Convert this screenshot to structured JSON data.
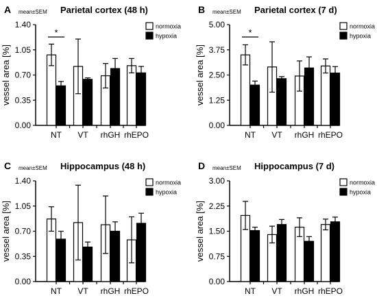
{
  "legend": {
    "normoxia_label": "normoxia",
    "hypoxia_label": "hypoxia",
    "normoxia_color": "#ffffff",
    "hypoxia_color": "#000000"
  },
  "chart_data": [
    {
      "type": "bar",
      "panel": "A",
      "stat_note": "mean±SEM",
      "title": "Parietal cortex (48 h)",
      "ylabel": "vessel area [%]",
      "ylim": [
        0,
        1.4
      ],
      "yticks": [
        "0.00",
        "0.35",
        "0.70",
        "1.05",
        "1.40"
      ],
      "categories": [
        "NT",
        "VT",
        "rhGH",
        "rhEPO"
      ],
      "series": [
        {
          "name": "normoxia",
          "values": [
            0.98,
            0.82,
            0.69,
            0.83
          ],
          "errors": [
            0.15,
            0.38,
            0.17,
            0.1
          ]
        },
        {
          "name": "hypoxia",
          "values": [
            0.55,
            0.64,
            0.79,
            0.73
          ],
          "errors": [
            0.06,
            0.02,
            0.14,
            0.09
          ]
        }
      ],
      "significance": [
        {
          "category": "NT",
          "label": "*"
        }
      ]
    },
    {
      "type": "bar",
      "panel": "B",
      "stat_note": "mean±SEM",
      "title": "Parietal cortex (7 d)",
      "ylabel": "vessel area [%]",
      "ylim": [
        0,
        5.0
      ],
      "yticks": [
        "0.00",
        "1.25",
        "2.50",
        "3.75",
        "5.00"
      ],
      "categories": [
        "NT",
        "VT",
        "rhGH",
        "rhEPO"
      ],
      "series": [
        {
          "name": "normoxia",
          "values": [
            3.5,
            2.9,
            2.45,
            2.95
          ],
          "errors": [
            0.5,
            1.25,
            0.75,
            0.35
          ]
        },
        {
          "name": "hypoxia",
          "values": [
            2.0,
            2.32,
            2.85,
            2.6
          ],
          "errors": [
            0.2,
            0.1,
            0.55,
            0.32
          ]
        }
      ],
      "significance": [
        {
          "category": "NT",
          "label": "*"
        }
      ]
    },
    {
      "type": "bar",
      "panel": "C",
      "stat_note": "mean±SEM",
      "title": "Hippocampus (48 h)",
      "ylabel": "vessel area [%]",
      "ylim": [
        0,
        1.4
      ],
      "yticks": [
        "0.00",
        "0.35",
        "0.70",
        "1.05",
        "1.40"
      ],
      "categories": [
        "NT",
        "VT",
        "rhGH",
        "rhEPO"
      ],
      "series": [
        {
          "name": "normoxia",
          "values": [
            0.87,
            0.82,
            0.79,
            0.58
          ],
          "errors": [
            0.17,
            0.52,
            0.4,
            0.32
          ]
        },
        {
          "name": "hypoxia",
          "values": [
            0.59,
            0.48,
            0.7,
            0.81
          ],
          "errors": [
            0.11,
            0.07,
            0.13,
            0.14
          ]
        }
      ],
      "significance": []
    },
    {
      "type": "bar",
      "panel": "D",
      "stat_note": "mean±SEM",
      "title": "Hippocampus (7 d)",
      "ylabel": "vessel area [%]",
      "ylim": [
        0,
        3.0
      ],
      "yticks": [
        "0.00",
        "0.75",
        "1.50",
        "2.25",
        "3.00"
      ],
      "categories": [
        "NT",
        "VT",
        "rhGH",
        "rhEPO"
      ],
      "series": [
        {
          "name": "normoxia",
          "values": [
            1.97,
            1.4,
            1.62,
            1.7
          ],
          "errors": [
            0.42,
            0.25,
            0.28,
            0.16
          ]
        },
        {
          "name": "hypoxia",
          "values": [
            1.52,
            1.7,
            1.2,
            1.78
          ],
          "errors": [
            0.1,
            0.15,
            0.14,
            0.14
          ]
        }
      ],
      "significance": []
    }
  ]
}
